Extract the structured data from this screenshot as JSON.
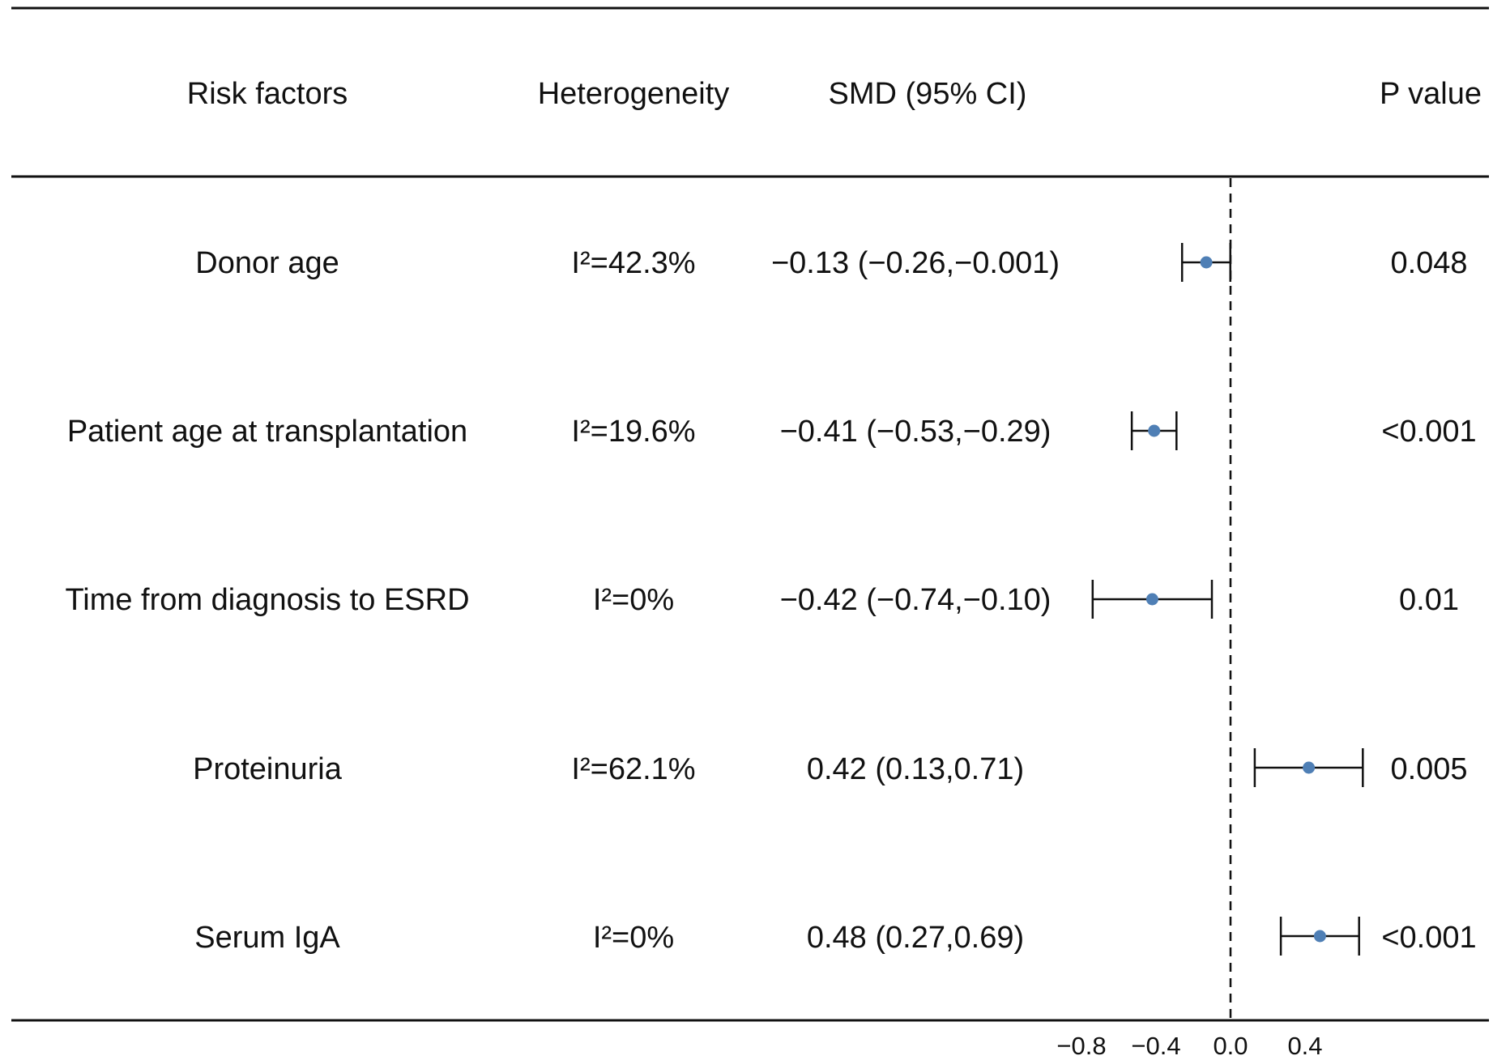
{
  "headers": {
    "risk_factors": "Risk factors",
    "heterogeneity": "Heterogeneity",
    "smd": "SMD (95% CI)",
    "p_value": "P value"
  },
  "rows": [
    {
      "factor": "Donor age",
      "heterogeneity": "I²=42.3%",
      "smd_text": "−0.13 (−0.26,−0.001)",
      "p_value": "0.048"
    },
    {
      "factor": "Patient age at transplantation",
      "heterogeneity": "I²=19.6%",
      "smd_text": "−0.41 (−0.53,−0.29)",
      "p_value": "<0.001"
    },
    {
      "factor": "Time from diagnosis to ESRD",
      "heterogeneity": "I²=0%",
      "smd_text": "−0.42 (−0.74,−0.10)",
      "p_value": "0.01"
    },
    {
      "factor": "Proteinuria",
      "heterogeneity": "I²=62.1%",
      "smd_text": "0.42 (0.13,0.71)",
      "p_value": "0.005"
    },
    {
      "factor": "Serum IgA",
      "heterogeneity": "I²=0%",
      "smd_text": "0.48 (0.27,0.69)",
      "p_value": "<0.001"
    }
  ],
  "chart_data": {
    "type": "forest",
    "point_color": "#4f7fb5",
    "reference_line": 0.0,
    "xlim": [
      -1.0,
      0.7
    ],
    "xticks": [
      -0.8,
      -0.4,
      0.0,
      0.4
    ],
    "xtick_labels": [
      "−0.8",
      "−0.4",
      "0.0",
      "0.4"
    ],
    "categories": [
      "Donor age",
      "Patient age at transplantation",
      "Time from diagnosis to ESRD",
      "Proteinuria",
      "Serum IgA"
    ],
    "estimates": [
      -0.13,
      -0.41,
      -0.42,
      0.42,
      0.48
    ],
    "ci_lower": [
      -0.26,
      -0.53,
      -0.74,
      0.13,
      0.27
    ],
    "ci_upper": [
      -0.001,
      -0.29,
      -0.1,
      0.71,
      0.69
    ]
  }
}
